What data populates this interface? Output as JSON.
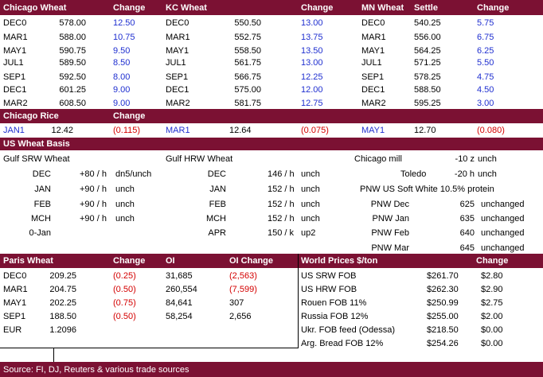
{
  "grains": {
    "headers": [
      "Chicago Wheat",
      "Change",
      "KC Wheat",
      "Change",
      "MN Wheat",
      "Settle",
      "Change"
    ],
    "chicago": [
      {
        "m": "DEC0",
        "p": "578.00",
        "c": "12.50"
      },
      {
        "m": "MAR1",
        "p": "588.00",
        "c": "10.75"
      },
      {
        "m": "MAY1",
        "p": "590.75",
        "c": "9.50"
      },
      {
        "m": "JUL1",
        "p": "589.50",
        "c": "8.50"
      },
      {
        "m": "SEP1",
        "p": "592.50",
        "c": "8.00"
      },
      {
        "m": "DEC1",
        "p": "601.25",
        "c": "9.00"
      },
      {
        "m": "MAR2",
        "p": "608.50",
        "c": "9.00"
      }
    ],
    "kc": [
      {
        "m": "DEC0",
        "p": "550.50",
        "c": "13.00"
      },
      {
        "m": "MAR1",
        "p": "552.75",
        "c": "13.75"
      },
      {
        "m": "MAY1",
        "p": "558.50",
        "c": "13.50"
      },
      {
        "m": "JUL1",
        "p": "561.75",
        "c": "13.00"
      },
      {
        "m": "SEP1",
        "p": "566.75",
        "c": "12.25"
      },
      {
        "m": "DEC1",
        "p": "575.00",
        "c": "12.00"
      },
      {
        "m": "MAR2",
        "p": "581.75",
        "c": "12.75"
      }
    ],
    "mn": [
      {
        "m": "DEC0",
        "p": "540.25",
        "c": "5.75"
      },
      {
        "m": "MAR1",
        "p": "556.00",
        "c": "6.75"
      },
      {
        "m": "MAY1",
        "p": "564.25",
        "c": "6.25"
      },
      {
        "m": "JUL1",
        "p": "571.25",
        "c": "5.50"
      },
      {
        "m": "SEP1",
        "p": "578.25",
        "c": "4.75"
      },
      {
        "m": "DEC1",
        "p": "588.50",
        "c": "4.50"
      },
      {
        "m": "MAR2",
        "p": "595.25",
        "c": "3.00"
      }
    ]
  },
  "rice": {
    "title": "Chicago Rice",
    "change_label": "Change",
    "items": [
      {
        "m": "JAN1",
        "p": "12.42",
        "c": "(0.115)"
      },
      {
        "m": "MAR1",
        "p": "12.64",
        "c": "(0.075)"
      },
      {
        "m": "MAY1",
        "p": "12.70",
        "c": "(0.080)"
      }
    ]
  },
  "basis": {
    "title": "US Wheat Basis",
    "gulf_srw_title": "Gulf SRW Wheat",
    "gulf_srw": [
      {
        "m": "DEC",
        "v": "+80 / h",
        "c": "dn5/unch"
      },
      {
        "m": "JAN",
        "v": "+90 / h",
        "c": "unch"
      },
      {
        "m": "FEB",
        "v": "+90 / h",
        "c": "unch"
      },
      {
        "m": "MCH",
        "v": "+90 / h",
        "c": "unch"
      },
      {
        "m": "0-Jan",
        "v": "",
        "c": ""
      }
    ],
    "gulf_hrw_title": "Gulf HRW Wheat",
    "gulf_hrw": [
      {
        "m": "DEC",
        "v": "146 / h",
        "c": "unch"
      },
      {
        "m": "JAN",
        "v": "152 / h",
        "c": "unch"
      },
      {
        "m": "FEB",
        "v": "152 / h",
        "c": "unch"
      },
      {
        "m": "MCH",
        "v": "152 / h",
        "c": "unch"
      },
      {
        "m": "APR",
        "v": "150 / k",
        "c": "up2"
      }
    ],
    "chicago_mill": {
      "label": "Chicago mill",
      "v": "-10 z",
      "c": "unch"
    },
    "toledo": {
      "label": "Toledo",
      "v": "-20 h",
      "c": "unch"
    },
    "pnw_title": "PNW US Soft White 10.5% protein",
    "pnw": [
      {
        "m": "PNW Dec",
        "v": "625",
        "c": "unchanged"
      },
      {
        "m": "PNW Jan",
        "v": "635",
        "c": "unchanged"
      },
      {
        "m": "PNW Feb",
        "v": "640",
        "c": "unchanged"
      },
      {
        "m": "PNW Mar",
        "v": "645",
        "c": "unchanged"
      }
    ]
  },
  "paris": {
    "headers": [
      "Paris Wheat",
      "Change",
      "OI",
      "OI Change"
    ],
    "rows": [
      {
        "m": "DEC0",
        "p": "209.25",
        "c": "(0.25)",
        "oi": "31,685",
        "oic": "(2,563)"
      },
      {
        "m": "MAR1",
        "p": "204.75",
        "c": "(0.50)",
        "oi": "260,554",
        "oic": "(7,599)"
      },
      {
        "m": "MAY1",
        "p": "202.25",
        "c": "(0.75)",
        "oi": "84,641",
        "oic": "307"
      },
      {
        "m": "SEP1",
        "p": "188.50",
        "c": "(0.50)",
        "oi": "58,254",
        "oic": "2,656"
      }
    ],
    "eur": {
      "label": "EUR",
      "v": "1.2096"
    }
  },
  "world": {
    "headers": [
      "World Prices $/ton",
      "Change"
    ],
    "rows": [
      {
        "n": "US SRW FOB",
        "p": "$261.70",
        "c": "$2.80"
      },
      {
        "n": "US HRW FOB",
        "p": "$262.30",
        "c": "$2.90"
      },
      {
        "n": "Rouen FOB 11%",
        "p": "$250.99",
        "c": "$2.75"
      },
      {
        "n": "Russia FOB 12%",
        "p": "$255.00",
        "c": "$2.00"
      },
      {
        "n": "Ukr. FOB feed (Odessa)",
        "p": "$218.50",
        "c": "$0.00"
      },
      {
        "n": "Arg. Bread FOB 12%",
        "p": "$254.26",
        "c": "$0.00"
      }
    ]
  },
  "footer": "Source: FI, DJ, Reuters & various trade sources"
}
